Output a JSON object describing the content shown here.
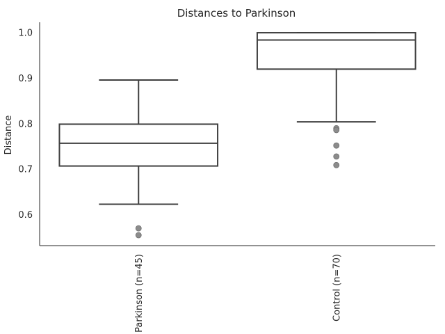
{
  "chart_data": {
    "type": "box",
    "title": "Distances to Parkinson",
    "ylabel": "Distance",
    "xlabel": "",
    "ylim": [
      0.532,
      1.023
    ],
    "yticks": [
      0.6,
      0.7,
      0.8,
      0.9,
      1.0
    ],
    "ytick_labels": [
      "0.6",
      "0.7",
      "0.8",
      "0.9",
      "1.0"
    ],
    "grid": false,
    "boxes": [
      {
        "label": "Parkinson (n=45)",
        "whisker_low": 0.623,
        "q1": 0.707,
        "median": 0.757,
        "q3": 0.799,
        "whisker_high": 0.896,
        "outliers": [
          0.57,
          0.555
        ]
      },
      {
        "label": "Control (n=70)",
        "whisker_low": 0.804,
        "q1": 0.92,
        "median": 0.984,
        "q3": 1.0,
        "whisker_high": 1.0,
        "outliers": [
          0.79,
          0.786,
          0.752,
          0.728,
          0.709
        ]
      }
    ],
    "colors": {
      "box_fill": "#ffffff",
      "line": "#3f3f3f",
      "outlier": "#8c8c8c",
      "axis": "#262626"
    }
  }
}
